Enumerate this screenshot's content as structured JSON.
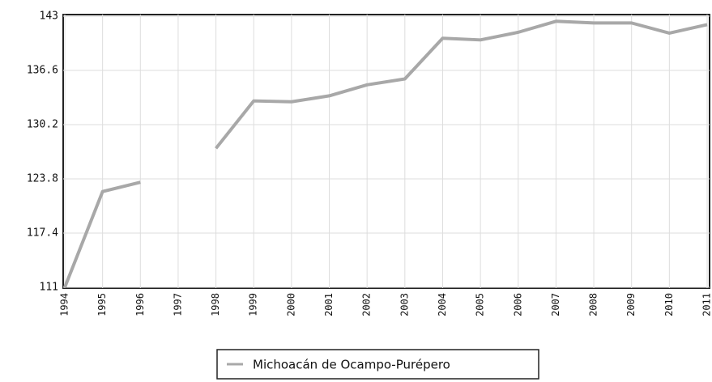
{
  "chart_data": {
    "type": "line",
    "categories": [
      "1994",
      "1995",
      "1996",
      "1997",
      "1998",
      "1999",
      "2000",
      "2001",
      "2002",
      "2003",
      "2004",
      "2005",
      "2006",
      "2007",
      "2008",
      "2009",
      "2010",
      "2011"
    ],
    "series": [
      {
        "name": "Michoacán de Ocampo-Purépero",
        "color": "#a8a8a8",
        "values": [
          111,
          122.3,
          123.4,
          null,
          127.4,
          133,
          132.9,
          133.6,
          134.9,
          135.6,
          140.4,
          140.2,
          141.1,
          142.4,
          142.2,
          142.2,
          141,
          142
        ]
      }
    ],
    "ylim": [
      111,
      143
    ],
    "yticks": [
      111,
      117.4,
      123.8,
      130.2,
      136.6,
      143
    ],
    "grid": true,
    "legend": "bottom"
  }
}
